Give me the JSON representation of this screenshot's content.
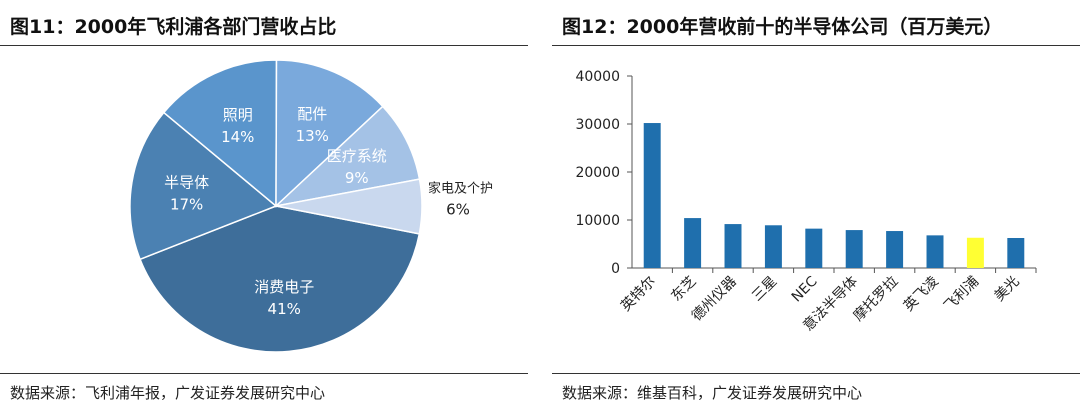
{
  "left": {
    "title": "图11：2000年飞利浦各部门营收占比",
    "source": "数据来源：飞利浦年报，广发证券发展研究中心"
  },
  "right": {
    "title": "图12：2000年营收前十的半导体公司（百万美元）",
    "source": "数据来源：维基百科，广发证券发展研究中心"
  },
  "chart_data": [
    {
      "type": "pie",
      "title": "2000年飞利浦各部门营收占比",
      "slices": [
        {
          "label": "消费电子",
          "value": 41,
          "display": "41%",
          "color": "#3e6e9a"
        },
        {
          "label": "半导体",
          "value": 17,
          "display": "17%",
          "color": "#4b81b2"
        },
        {
          "label": "照明",
          "value": 14,
          "display": "14%",
          "color": "#5a95cc"
        },
        {
          "label": "配件",
          "value": 13,
          "display": "13%",
          "color": "#7aa9dc"
        },
        {
          "label": "医疗系统",
          "value": 9,
          "display": "9%",
          "color": "#a4c2e6"
        },
        {
          "label": "家电及个护",
          "value": 6,
          "display": "6%",
          "color": "#c9d8ee"
        }
      ]
    },
    {
      "type": "bar",
      "title": "2000年营收前十的半导体公司（百万美元）",
      "categories": [
        "英特尔",
        "东芝",
        "德州仪器",
        "三星",
        "NEC",
        "意法半导体",
        "摩托罗拉",
        "英飞凌",
        "飞利浦",
        "美光"
      ],
      "values": [
        30200,
        10400,
        9150,
        8900,
        8200,
        7900,
        7700,
        6800,
        6300,
        6250
      ],
      "colors": [
        "#1f6fad",
        "#1f6fad",
        "#1f6fad",
        "#1f6fad",
        "#1f6fad",
        "#1f6fad",
        "#1f6fad",
        "#1f6fad",
        "#ffff33",
        "#1f6fad"
      ],
      "ylim": [
        0,
        40000
      ],
      "yticks": [
        0,
        10000,
        20000,
        30000,
        40000
      ],
      "ytick_labels": [
        "0",
        "10000",
        "20000",
        "30000",
        "40000"
      ],
      "grid": false
    }
  ]
}
